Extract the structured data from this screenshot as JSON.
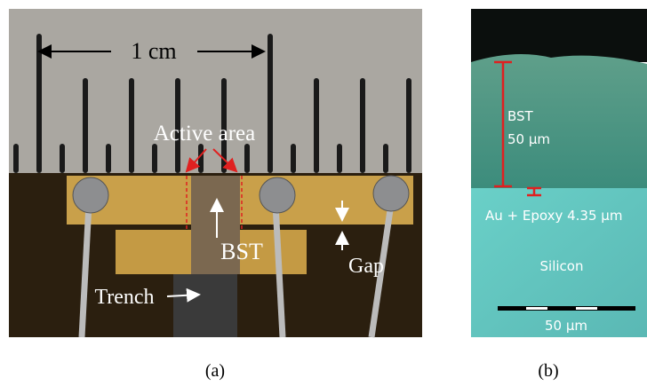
{
  "panels": [
    {
      "caption": "(a)",
      "labels": {
        "scale": "1 cm",
        "active_area": "Active area",
        "bst": "BST",
        "gap": "Gap",
        "trench": "Trench"
      }
    },
    {
      "caption": "(b)",
      "labels": {
        "bst": "BST",
        "bst_thickness": "50 µm",
        "interlayer": "Au + Epoxy 4.35 µm",
        "substrate": "Silicon",
        "scale_bar": "50 µm"
      }
    }
  ]
}
